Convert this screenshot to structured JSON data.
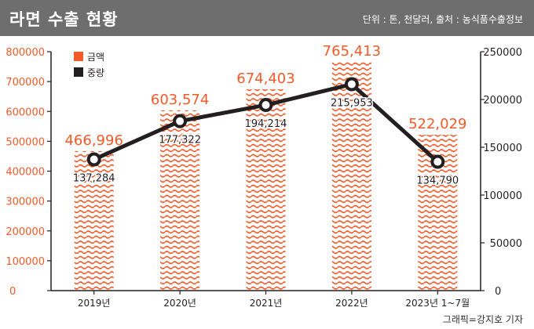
{
  "header": {
    "title": "라면 수출 현황",
    "source": "단위 : 톤, 천달러, 출처 : 농식품수출정보"
  },
  "footer": {
    "credit": "그래픽=강지호 기자"
  },
  "colors": {
    "header_bg": "#6e6e6e",
    "amount": "#f15a29",
    "volume": "#231f20",
    "axis": "#231f20"
  },
  "chart_data": {
    "type": "bar+line",
    "title": "라면 수출 현황",
    "categories": [
      "2019년",
      "2020년",
      "2021년",
      "2022년",
      "2023년 1~7월"
    ],
    "legend": [
      {
        "name": "금액",
        "marker": "square",
        "color": "#f15a29"
      },
      {
        "name": "중량",
        "marker": "square",
        "color": "#231f20"
      }
    ],
    "legend_position": "top-left",
    "series": [
      {
        "name": "금액",
        "type": "bar",
        "axis": "left",
        "values": [
          466996,
          603574,
          674403,
          765413,
          522029
        ],
        "labels": [
          "466,996",
          "603,574",
          "674,403",
          "765,413",
          "522,029"
        ]
      },
      {
        "name": "중량",
        "type": "line",
        "axis": "right",
        "values": [
          137284,
          177322,
          194214,
          215953,
          134790
        ],
        "labels": [
          "137,284",
          "177,322",
          "194,214",
          "215,953",
          "134,790"
        ]
      }
    ],
    "left_axis": {
      "min": 0,
      "max": 800000,
      "ticks": [
        "0",
        "100000",
        "200000",
        "300000",
        "400000",
        "500000",
        "600000",
        "700000",
        "800000"
      ]
    },
    "right_axis": {
      "min": 0,
      "max": 250000,
      "ticks": [
        "0",
        "50000",
        "100000",
        "150000",
        "200000",
        "250000"
      ]
    },
    "grid": false
  }
}
